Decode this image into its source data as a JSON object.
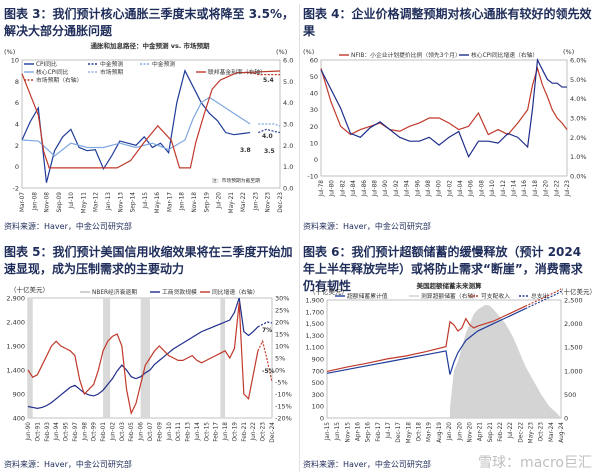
{
  "watermark": "雪球：macro巨汇",
  "panels": {
    "tl": {
      "title": "图表 3：我们预计核心通胀三季度末或将降至 3.5%，解决大部分通胀问题",
      "source": "资料来源：Haver，中金公司研究部"
    },
    "tr": {
      "title": "图表 4：企业价格调整预期对核心通胀有较好的领先效果",
      "source": "资料来源：Haver，中金公司研究部"
    },
    "bl": {
      "title": "图表 5：我们预计美国信用收缩效果将在三季度开始加速显现，成为压制需求的主要动力",
      "source": "资料来源：Haver，中金公司研究部"
    },
    "br": {
      "title": "图表 6：我们预计超额储蓄的缓慢释放（预计 2024 年上半年释放完毕）或将防止需求“断崖”，消费需求仍有韧性",
      "source": "资料来源：Haver，中金公司研究部"
    }
  },
  "chart_data": [
    {
      "type": "line",
      "title": "通胀和加息路径：中金预测 vs. 市场预期",
      "yunit_left": "(%)",
      "yunit_right": "(%)",
      "ylim_left": [
        -2,
        10
      ],
      "yticks_left": [
        "-2",
        "0",
        "2",
        "4",
        "6",
        "8",
        "10"
      ],
      "ylim_right": [
        -1,
        6
      ],
      "yticks_right": [
        "0.0",
        "1.0",
        "2.0",
        "3.0",
        "4.0",
        "5.0",
        "6.0"
      ],
      "xticks": [
        "Mar-07",
        "Jan-08",
        "Nov-08",
        "Sep-09",
        "Jul-10",
        "May-11",
        "Mar-12",
        "Jan-13",
        "Nov-13",
        "Sep-14",
        "Jul-15",
        "May-16",
        "Mar-17",
        "Jan-18",
        "Nov-18",
        "Sep-19",
        "Jul-20",
        "May-21",
        "Mar-22",
        "Jan-23",
        "Nov-23",
        "Dec-23"
      ],
      "annotations": [
        "3.8",
        "4.0",
        "3.5",
        "5.4"
      ],
      "note": "注：市场预期为截至期",
      "legend": [
        "CPI同比",
        "中金预测",
        "市场预期",
        "核心CPI同比",
        "中金预测",
        "联邦基金利率（右轴）",
        "市场预期（右轴）"
      ],
      "series": [
        {
          "name": "CPI同比",
          "color": "#1f3d99",
          "x": [
            0,
            6,
            12,
            18,
            24,
            30,
            36,
            42,
            48,
            54,
            60,
            66,
            72,
            78,
            84,
            90,
            96,
            102,
            108,
            114,
            120,
            126,
            132,
            138,
            144,
            150,
            156,
            162,
            168,
            174,
            180,
            186,
            190
          ],
          "values": [
            2.5,
            4.2,
            5.5,
            -1.5,
            1.5,
            2.8,
            3.5,
            1.8,
            1.5,
            1.6,
            -0.2,
            1.0,
            2.4,
            2.2,
            2.0,
            2.8,
            1.8,
            2.2,
            1.3,
            6.0,
            9.0,
            7.5,
            6.0,
            5.0,
            4.3,
            3.2,
            3.0,
            3.1,
            3.2,
            3.2,
            3.5,
            3.3,
            3.2
          ]
        },
        {
          "name": "核心CPI同比",
          "color": "#7fa7e0",
          "x": [
            0,
            12,
            24,
            36,
            48,
            60,
            72,
            84,
            96,
            108,
            120,
            126,
            132,
            138,
            144,
            150,
            156,
            162,
            168,
            174,
            180,
            186,
            190
          ],
          "values": [
            2.5,
            2.4,
            1.0,
            2.2,
            1.8,
            1.8,
            2.2,
            1.8,
            2.2,
            1.6,
            2.5,
            4.5,
            6.0,
            6.5,
            6.0,
            5.5,
            5.0,
            4.5,
            4.0,
            4.0,
            4.0,
            4.0,
            3.8
          ]
        },
        {
          "name": "联邦基金利率（右轴）",
          "color": "#c0392b",
          "x": [
            0,
            12,
            16,
            20,
            70,
            80,
            90,
            100,
            110,
            116,
            120,
            124,
            128,
            134,
            140,
            146,
            152,
            158,
            190
          ],
          "values": [
            5.25,
            3.0,
            1.0,
            0.1,
            0.1,
            0.5,
            1.5,
            2.4,
            1.6,
            0.1,
            0.1,
            0.1,
            1.5,
            3.0,
            4.4,
            4.9,
            5.1,
            5.3,
            5.4
          ]
        },
        {
          "name": "市场预期（右轴）",
          "color": "#c0392b",
          "x": [
            158,
            162,
            166,
            170,
            174,
            178,
            182,
            186,
            190
          ],
          "values": [
            5.3,
            5.3,
            5.3,
            5.3,
            5.2,
            5.2,
            5.2,
            5.2,
            5.2
          ]
        }
      ]
    },
    {
      "type": "line",
      "legend": [
        "NFIB：小企业计划提价比例（领先3个月）",
        "核心CPI同比增速（右轴）"
      ],
      "yunit_left": "(%)",
      "yunit_right": "(%)",
      "ylim_left": [
        -10,
        60
      ],
      "yticks_left": [
        "-10",
        "0",
        "10",
        "20",
        "30",
        "40",
        "50",
        "60"
      ],
      "ylim_right": [
        0.0,
        6.0
      ],
      "yticks_right": [
        "0.0%",
        "1.0%",
        "2.0%",
        "3.0%",
        "4.0%",
        "5.0%",
        "6.0%"
      ],
      "xticks": [
        "Jul-78",
        "Jul-80",
        "Jul-82",
        "Jul-84",
        "Jul-86",
        "Jul-88",
        "Jul-90",
        "Jul-92",
        "Jul-94",
        "Jul-96",
        "Jul-98",
        "Jul-00",
        "Jul-02",
        "Jul-04",
        "Jul-06",
        "Jul-08",
        "Jul-10",
        "Jul-12",
        "Jul-14",
        "Jul-16",
        "Jul-18",
        "Jul-20",
        "Jul-22",
        "Jul-23"
      ],
      "series": [
        {
          "name": "NFIB：小企业计划提价比例（领先3个月）",
          "color": "#c0392b",
          "x": [
            0,
            2,
            4,
            6,
            8,
            10,
            12,
            14,
            16,
            18,
            20,
            22,
            24,
            26,
            28,
            30,
            32,
            34,
            36,
            38,
            40,
            42,
            43,
            44,
            45,
            46,
            47,
            48,
            49,
            50
          ],
          "values": [
            55,
            35,
            20,
            15,
            18,
            20,
            22,
            18,
            17,
            20,
            22,
            25,
            25,
            22,
            18,
            20,
            28,
            15,
            18,
            15,
            22,
            30,
            45,
            55,
            45,
            38,
            30,
            25,
            22,
            18
          ]
        },
        {
          "name": "核心CPI同比增速（右轴）",
          "color": "#1f2d8a",
          "x": [
            0,
            2,
            4,
            6,
            8,
            10,
            12,
            14,
            16,
            18,
            20,
            22,
            24,
            26,
            28,
            30,
            32,
            34,
            36,
            38,
            40,
            42,
            43,
            44,
            45,
            46,
            47,
            48,
            49,
            50
          ],
          "values": [
            5.5,
            4.5,
            3.5,
            2.2,
            2.0,
            2.5,
            2.8,
            2.4,
            2.0,
            1.8,
            1.8,
            2.0,
            1.6,
            2.0,
            2.3,
            1.0,
            1.8,
            1.8,
            1.7,
            2.2,
            2.0,
            1.5,
            3.5,
            6.0,
            5.5,
            5.0,
            4.8,
            4.8,
            4.6,
            4.6
          ]
        }
      ]
    },
    {
      "type": "line",
      "legend": [
        "NBER经济衰退期",
        "工商贷款规模",
        "同比增速（右轴）"
      ],
      "yunit_left": "（十亿美元）",
      "ylim_left": [
        400,
        2900
      ],
      "yticks_left": [
        "400",
        "900",
        "1,400",
        "1,900",
        "2,400",
        "2,900"
      ],
      "ylim_right": [
        -20,
        30
      ],
      "yticks_right": [
        "30%",
        "25%",
        "20%",
        "15%",
        "10%",
        "5%",
        "0%",
        "-5%",
        "-10%",
        "-15%",
        "-20%"
      ],
      "xticks": [
        "Jun-90",
        "Oct-91",
        "Feb-93",
        "Jun-94",
        "Oct-95",
        "Feb-97",
        "Jun-98",
        "Oct-99",
        "Feb-01",
        "Jun-02",
        "Oct-03",
        "Feb-05",
        "Jun-06",
        "Oct-07",
        "Feb-09",
        "Jun-10",
        "Oct-11",
        "Feb-13",
        "Jun-14",
        "Oct-15",
        "Feb-17",
        "Jun-18",
        "Oct-19",
        "Feb-21",
        "Jun-22",
        "Oct-23",
        "Dec-24"
      ],
      "recessions": [
        [
          0,
          1
        ],
        [
          16,
          17.5
        ],
        [
          24,
          26
        ],
        [
          41,
          42
        ]
      ],
      "annotations": [
        "-5%",
        "7%"
      ],
      "series": [
        {
          "name": "工商贷款规模",
          "color": "#1f2d8a",
          "x": [
            0,
            3,
            6,
            9,
            12,
            15,
            18,
            21,
            24,
            27,
            30,
            33,
            36,
            39,
            42,
            45,
            48,
            51,
            54,
            57,
            60,
            63,
            66,
            69,
            72,
            75,
            78,
            81,
            84,
            87,
            90,
            93,
            96,
            99,
            102,
            105,
            108,
            111,
            114,
            117,
            120,
            123,
            126,
            129,
            132,
            135,
            138,
            141,
            144,
            147,
            150,
            153,
            156
          ],
          "values": [
            640,
            620,
            600,
            620,
            660,
            720,
            800,
            880,
            960,
            1040,
            1080,
            1000,
            920,
            880,
            860,
            900,
            980,
            1100,
            1220,
            1380,
            1500,
            1400,
            1260,
            1220,
            1260,
            1340,
            1400,
            1520,
            1600,
            1680,
            1760,
            1840,
            1900,
            1960,
            2020,
            2080,
            2140,
            2200,
            2240,
            2280,
            2320,
            2360,
            2400,
            2440,
            2600,
            2900,
            2200,
            2120,
            2200,
            2300,
            2350,
            2400,
            2380
          ]
        },
        {
          "name": "同比增速（右轴）",
          "color": "#c0392b",
          "x": [
            0,
            3,
            6,
            9,
            12,
            15,
            18,
            21,
            24,
            27,
            30,
            33,
            36,
            39,
            42,
            45,
            48,
            51,
            54,
            57,
            60,
            63,
            66,
            69,
            72,
            75,
            78,
            81,
            84,
            87,
            90,
            93,
            96,
            99,
            102,
            105,
            108,
            111,
            114,
            117,
            120,
            123,
            126,
            129,
            132,
            135,
            138,
            141,
            144,
            147,
            150,
            153,
            156
          ],
          "values": [
            0,
            -3,
            -2,
            2,
            6,
            10,
            12,
            10,
            9,
            8,
            6,
            -4,
            -10,
            -8,
            -6,
            0,
            8,
            12,
            14,
            15,
            10,
            -8,
            -18,
            -14,
            -6,
            2,
            5,
            8,
            10,
            8,
            6,
            5,
            4,
            4,
            5,
            6,
            4,
            3,
            4,
            5,
            6,
            7,
            8,
            5,
            9,
            28,
            -10,
            -12,
            -2,
            8,
            12,
            4,
            -5
          ]
        }
      ]
    },
    {
      "type": "area",
      "title": "美国超额储蓄未来测算",
      "yunit_left": "（十亿美元）",
      "yunit_right": "（十亿美元）",
      "ylim_left": [
        0,
        1900
      ],
      "yticks_left": [
        "0",
        "100",
        "300",
        "500",
        "700",
        "900",
        "1,100",
        "1,300",
        "1,500",
        "1,700",
        "1,900"
      ],
      "ylim_right": [
        0,
        2500
      ],
      "yticks_right": [
        "0",
        "500",
        "1,000",
        "1,500",
        "2,000",
        "2,500"
      ],
      "legend": [
        "超额储蓄累计值",
        "测算超额储蓄（右轴）",
        "可支配收入",
        "总支出"
      ],
      "xticks": [
        "Jan-15",
        "Jun-15",
        "Nov-15",
        "Apr-16",
        "Sep-16",
        "Feb-17",
        "Jul-17",
        "Dec-17",
        "May-18",
        "Oct-18",
        "Mar-19",
        "Aug-19",
        "Jan-20",
        "Jun-20",
        "Nov-20",
        "Apr-21",
        "Sep-21",
        "Feb-22",
        "Jul-22",
        "Dec-22",
        "May-23",
        "Oct-23",
        "Mar-24",
        "Aug-24"
      ],
      "series": [
        {
          "name": "测算超额储蓄（右轴）",
          "color": "#cfcfcf",
          "x": [
            62,
            64,
            66,
            68,
            70,
            72,
            74,
            76,
            78,
            80,
            82,
            84,
            86,
            88,
            90,
            92,
            94,
            96,
            98,
            100,
            104,
            108,
            112,
            116,
            118
          ],
          "values": [
            200,
            1000,
            1200,
            1500,
            1800,
            2000,
            2200,
            2300,
            2350,
            2400,
            2380,
            2300,
            2200,
            2100,
            2000,
            1850,
            1700,
            1500,
            1300,
            1100,
            800,
            500,
            250,
            100,
            0
          ]
        },
        {
          "name": "可支配收入",
          "color": "#c0392b",
          "x": [
            0,
            10,
            20,
            30,
            40,
            50,
            60,
            62,
            64,
            66,
            68,
            70,
            72,
            74,
            76,
            80,
            84,
            88,
            92,
            96,
            100,
            104,
            108,
            112,
            116,
            118
          ],
          "values": [
            750,
            820,
            880,
            950,
            1000,
            1070,
            1150,
            1550,
            1500,
            1400,
            1450,
            1600,
            1500,
            1450,
            1480,
            1520,
            1560,
            1620,
            1680,
            1740,
            1800,
            1860,
            1920,
            1980,
            2040,
            2080
          ]
        },
        {
          "name": "总支出",
          "color": "#1f3d99",
          "x": [
            0,
            10,
            20,
            30,
            40,
            50,
            60,
            62,
            64,
            66,
            68,
            70,
            72,
            74,
            76,
            80,
            84,
            88,
            92,
            96,
            100,
            104,
            108,
            112,
            116,
            118
          ],
          "values": [
            720,
            780,
            840,
            900,
            960,
            1020,
            1080,
            700,
            900,
            1050,
            1150,
            1250,
            1300,
            1350,
            1400,
            1460,
            1520,
            1580,
            1640,
            1700,
            1760,
            1820,
            1880,
            1940,
            2000,
            2040
          ]
        }
      ]
    }
  ]
}
